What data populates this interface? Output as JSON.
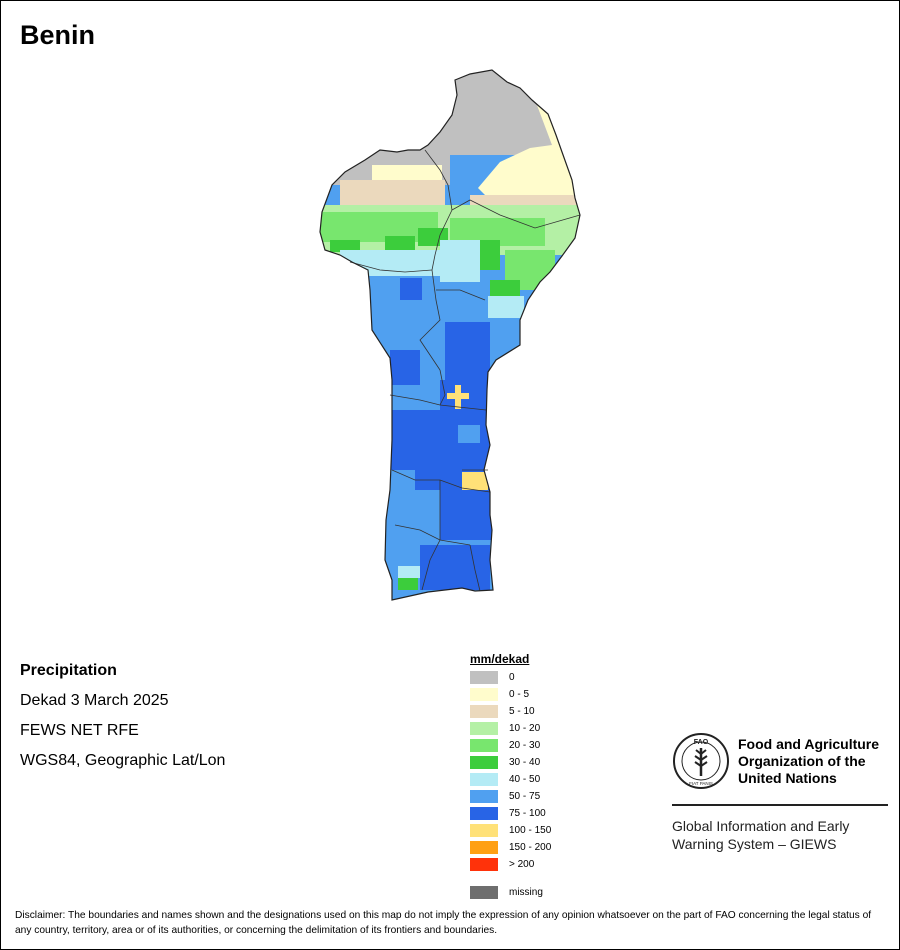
{
  "title": "Benin",
  "info": {
    "heading": "Precipitation",
    "period": "Dekad 3 March 2025",
    "source": "FEWS NET RFE",
    "projection": "WGS84, Geographic Lat/Lon"
  },
  "legend": {
    "title": "mm/dekad",
    "items": [
      {
        "label": "0",
        "color": "#c0c0c0"
      },
      {
        "label": "0 - 5",
        "color": "#fffccc"
      },
      {
        "label": "5 - 10",
        "color": "#ebd9bd"
      },
      {
        "label": "10 - 20",
        "color": "#b4f0a5"
      },
      {
        "label": "20 - 30",
        "color": "#78e66e"
      },
      {
        "label": "30 - 40",
        "color": "#3ccd3c"
      },
      {
        "label": "40 - 50",
        "color": "#b4ebf5"
      },
      {
        "label": "50 - 75",
        "color": "#50a0f0"
      },
      {
        "label": "75 - 100",
        "color": "#2864e6"
      },
      {
        "label": "100 - 150",
        "color": "#ffe178"
      },
      {
        "label": "150 - 200",
        "color": "#ffa014"
      },
      {
        "label": "> 200",
        "color": "#ff320a"
      }
    ],
    "missing": {
      "label": "missing",
      "color": "#6e6e6e"
    }
  },
  "fao": {
    "name_line1": "Food and Agriculture",
    "name_line2": "Organization of the",
    "name_line3": "United Nations",
    "logo_text": "FAO",
    "logo_motto": "FIAT PANIS"
  },
  "giews": {
    "line1": "Global Information and Early",
    "line2": "Warning System – GIEWS"
  },
  "disclaimer": "Disclaimer: The boundaries and names shown and the designations used on this map do not imply the expression of any opinion whatsoever on the part of FAO concerning the legal status of any country, territory, area or of its authorities, or concerning the delimitation of its frontiers and boundaries."
}
